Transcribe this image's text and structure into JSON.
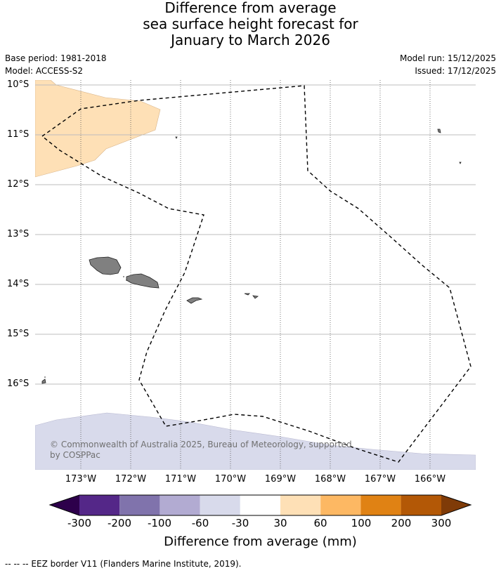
{
  "title": {
    "line1": "Difference from average",
    "line2": "sea surface height forecast for",
    "line3": "January to March 2026"
  },
  "meta": {
    "base_period": "Base period: 1981-2018",
    "model": "Model: ACCESS-S2",
    "model_run": "Model run: 15/12/2025",
    "issued": "Issued: 17/12/2025"
  },
  "map": {
    "lat_labels": [
      "10°S",
      "11°S",
      "12°S",
      "13°S",
      "14°S",
      "15°S",
      "16°S"
    ],
    "lon_labels": [
      "173°W",
      "172°W",
      "171°W",
      "170°W",
      "169°W",
      "168°W",
      "167°W",
      "166°W"
    ],
    "ocean_color": "#ffffff",
    "land_color": "#808080",
    "anomaly_regions": [
      {
        "category": "30 to 60 mm",
        "color": "#fee0b6"
      },
      {
        "category": "-60 to -30 mm",
        "color": "#d8daeb"
      }
    ],
    "eez_border": "dashed black line",
    "copyright": {
      "line1": "© Commonwealth of Australia 2025, Bureau of Meteorology, supported",
      "line2": "by COSPPac"
    }
  },
  "colorbar": {
    "labels": [
      "-300",
      "-200",
      "-100",
      "-60",
      "-30",
      "30",
      "60",
      "100",
      "200",
      "300"
    ],
    "colors": [
      "#2d004b",
      "#542788",
      "#8073ac",
      "#b2abd2",
      "#d8daeb",
      "#ffffff",
      "#fee0b6",
      "#fdb863",
      "#e08214",
      "#b35806",
      "#7f3b08"
    ],
    "title": "Difference from average (mm)"
  },
  "footnote": "--  --  -- EEZ border V11 (Flanders Marine Institute, 2019)."
}
